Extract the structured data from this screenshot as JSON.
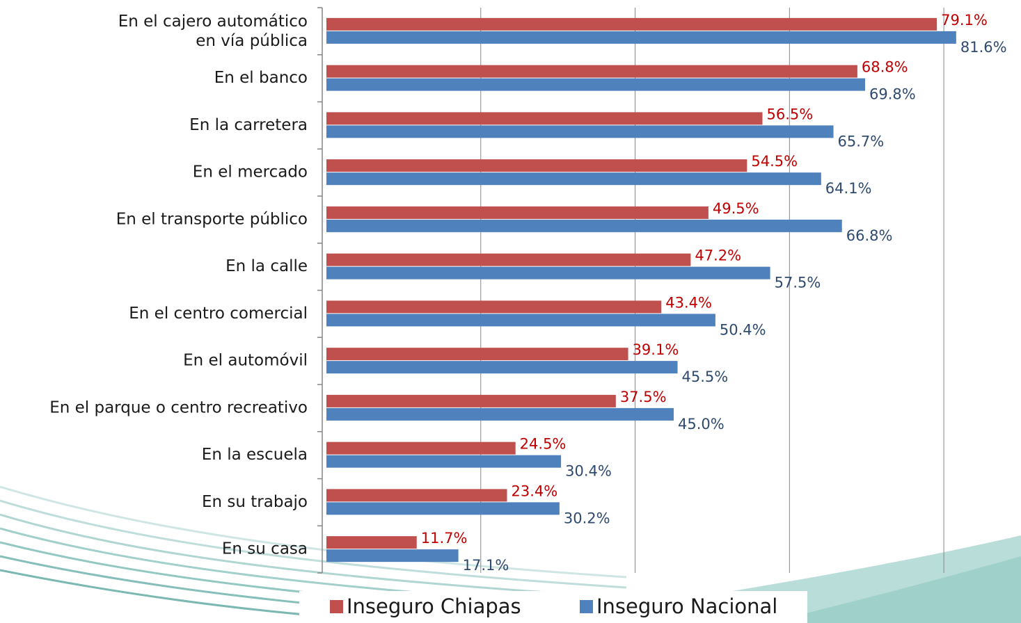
{
  "chart_data": {
    "type": "barh",
    "categories": [
      "En el cajero automático\nen vía pública",
      "En el banco",
      "En la carretera",
      "En el mercado",
      "En el transporte público",
      "En la calle",
      "En el centro comercial",
      "En el automóvil",
      "En el parque o centro recreativo",
      "En la escuela",
      "En su trabajo",
      "En su casa"
    ],
    "series": [
      {
        "name": "Inseguro Chiapas",
        "color": "#c0504d",
        "label_color": "#c00000",
        "values": [
          79.1,
          68.8,
          56.5,
          54.5,
          49.5,
          47.2,
          43.4,
          39.1,
          37.5,
          24.5,
          23.4,
          11.7
        ],
        "value_labels": [
          "79.1%",
          "68.8%",
          "56.5%",
          "54.5%",
          "49.5%",
          "47.2%",
          "43.4%",
          "39.1%",
          "37.5%",
          "24.5%",
          "23.4%",
          "11.7%"
        ]
      },
      {
        "name": "Inseguro Nacional",
        "color": "#4f81bd",
        "label_color": "#2e4a6e",
        "values": [
          81.6,
          69.8,
          65.7,
          64.1,
          66.8,
          57.5,
          50.4,
          45.5,
          45.0,
          30.4,
          30.2,
          17.1
        ],
        "value_labels": [
          "81.6%",
          "69.8%",
          "65.7%",
          "64.1%",
          "66.8%",
          "57.5%",
          "50.4%",
          "45.5%",
          "45.0%",
          "30.4%",
          "30.2%",
          "17.1%"
        ]
      }
    ],
    "xlim": [
      0,
      90
    ],
    "xticks": [
      0,
      20,
      40,
      60,
      80
    ],
    "grid": true,
    "legend": "bottom"
  }
}
